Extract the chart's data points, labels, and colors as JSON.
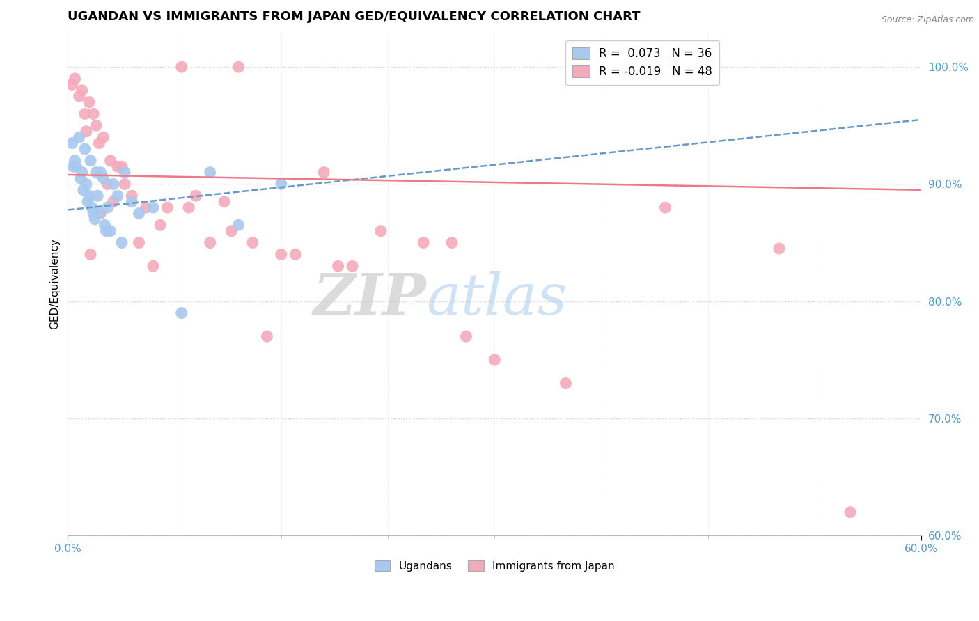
{
  "title": "UGANDAN VS IMMIGRANTS FROM JAPAN GED/EQUIVALENCY CORRELATION CHART",
  "source": "Source: ZipAtlas.com",
  "ylabel_label": "GED/Equivalency",
  "legend_label1": "Ugandans",
  "legend_label2": "Immigrants from Japan",
  "R1": 0.073,
  "N1": 36,
  "R2": -0.019,
  "N2": 48,
  "xmin": 0.0,
  "xmax": 60.0,
  "ymin": 60.0,
  "ymax": 103.0,
  "blue_color": "#A8C8EE",
  "pink_color": "#F4AABB",
  "blue_line_color": "#6699CC",
  "pink_line_color": "#EE7788",
  "blue_trend_x": [
    0.0,
    60.0
  ],
  "blue_trend_y": [
    87.8,
    95.5
  ],
  "pink_trend_x": [
    0.0,
    60.0
  ],
  "pink_trend_y": [
    90.8,
    89.5
  ],
  "ugandan_x": [
    0.3,
    0.5,
    0.6,
    0.8,
    0.9,
    1.0,
    1.1,
    1.2,
    1.3,
    1.4,
    1.5,
    1.6,
    1.7,
    1.8,
    1.9,
    2.0,
    2.1,
    2.2,
    2.3,
    2.5,
    2.6,
    2.8,
    3.0,
    3.2,
    3.5,
    3.8,
    4.0,
    4.5,
    5.0,
    6.0,
    8.0,
    10.0,
    12.0,
    15.0,
    0.4,
    2.7
  ],
  "ugandan_y": [
    93.5,
    92.0,
    91.5,
    94.0,
    90.5,
    91.0,
    89.5,
    93.0,
    90.0,
    88.5,
    89.0,
    92.0,
    88.0,
    87.5,
    87.0,
    91.0,
    89.0,
    87.5,
    91.0,
    90.5,
    86.5,
    88.0,
    86.0,
    90.0,
    89.0,
    85.0,
    91.0,
    88.5,
    87.5,
    88.0,
    79.0,
    91.0,
    86.5,
    90.0,
    91.5,
    86.0
  ],
  "japan_x": [
    0.3,
    0.5,
    0.8,
    1.0,
    1.2,
    1.5,
    1.8,
    2.0,
    2.2,
    2.5,
    2.8,
    3.0,
    3.5,
    4.0,
    4.5,
    5.0,
    5.5,
    6.0,
    7.0,
    8.0,
    9.0,
    10.0,
    11.0,
    12.0,
    13.0,
    14.0,
    15.0,
    16.0,
    18.0,
    20.0,
    22.0,
    25.0,
    27.0,
    28.0,
    30.0,
    35.0,
    1.3,
    1.6,
    2.3,
    3.2,
    3.8,
    6.5,
    8.5,
    11.5,
    19.0,
    42.0,
    50.0,
    55.0
  ],
  "japan_y": [
    98.5,
    99.0,
    97.5,
    98.0,
    96.0,
    97.0,
    96.0,
    95.0,
    93.5,
    94.0,
    90.0,
    92.0,
    91.5,
    90.0,
    89.0,
    85.0,
    88.0,
    83.0,
    88.0,
    100.0,
    89.0,
    85.0,
    88.5,
    100.0,
    85.0,
    77.0,
    84.0,
    84.0,
    91.0,
    83.0,
    86.0,
    85.0,
    85.0,
    77.0,
    75.0,
    73.0,
    94.5,
    84.0,
    87.5,
    88.5,
    91.5,
    86.5,
    88.0,
    86.0,
    83.0,
    88.0,
    84.5,
    62.0
  ]
}
